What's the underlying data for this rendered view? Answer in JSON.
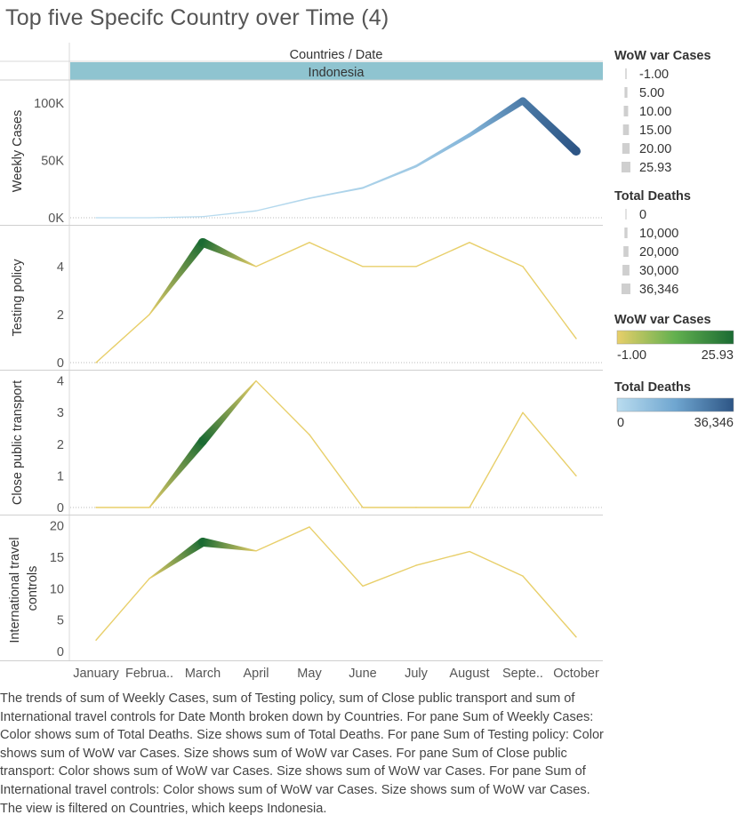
{
  "title": "Top five Specifc Country over Time (4)",
  "header": {
    "columns_label": "Countries / Date",
    "country": "Indonesia"
  },
  "x_labels": [
    "January",
    "Februa..",
    "March",
    "April",
    "May",
    "June",
    "July",
    "August",
    "Septe..",
    "October"
  ],
  "chart_data": [
    {
      "type": "line",
      "ylabel": "Weekly Cases",
      "yticks": [
        "0K",
        "50K",
        "100K"
      ],
      "ylim": [
        0,
        110000
      ],
      "x": [
        "January",
        "February",
        "March",
        "April",
        "May",
        "June",
        "July",
        "August",
        "September",
        "October"
      ],
      "values": [
        0,
        0,
        1000,
        6000,
        17000,
        26000,
        45000,
        72000,
        102000,
        58000
      ],
      "color_by": "Total Deaths",
      "size_by": "Total Deaths",
      "color_values": [
        0,
        0,
        200,
        800,
        2000,
        3500,
        6500,
        13000,
        28000,
        36346
      ]
    },
    {
      "type": "line",
      "ylabel": "Testing policy",
      "yticks": [
        "0",
        "2",
        "4"
      ],
      "ylim": [
        0,
        5.4
      ],
      "x": [
        "January",
        "February",
        "March",
        "April",
        "May",
        "June",
        "July",
        "August",
        "September",
        "October"
      ],
      "values": [
        0,
        2,
        5,
        4,
        5,
        4,
        4,
        5,
        4,
        1
      ],
      "color_by": "WoW var Cases",
      "size_by": "WoW var Cases",
      "color_values": [
        -1,
        -1,
        25.93,
        -1,
        -1,
        -1,
        -1,
        -1,
        -1,
        -1
      ]
    },
    {
      "type": "line",
      "ylabel": "Close public transport",
      "yticks": [
        "0",
        "1",
        "2",
        "3",
        "4"
      ],
      "ylim": [
        0,
        4.1
      ],
      "x": [
        "January",
        "February",
        "March",
        "April",
        "May",
        "June",
        "July",
        "August",
        "September",
        "October"
      ],
      "values": [
        0,
        0,
        2.1,
        4,
        2.3,
        0,
        0,
        0,
        3,
        1
      ],
      "color_by": "WoW var Cases",
      "size_by": "WoW var Cases",
      "color_values": [
        -1,
        -1,
        25.93,
        -1,
        -1,
        -1,
        -1,
        -1,
        -1,
        -1
      ]
    },
    {
      "type": "line",
      "ylabel": "International travel controls",
      "yticks": [
        "0",
        "5",
        "10",
        "15",
        "20"
      ],
      "ylim": [
        0,
        20.5
      ],
      "x": [
        "January",
        "February",
        "March",
        "April",
        "May",
        "June",
        "July",
        "August",
        "September",
        "October"
      ],
      "values": [
        1.8,
        11.6,
        17.4,
        16,
        19.8,
        10.4,
        13.7,
        15.9,
        12,
        2.3
      ],
      "color_by": "WoW var Cases",
      "size_by": "WoW var Cases",
      "color_values": [
        -1,
        -1,
        25.93,
        -1,
        -1,
        -1,
        -1,
        -1,
        -1,
        -1
      ]
    }
  ],
  "legends": {
    "wow_size": {
      "title": "WoW var Cases",
      "items": [
        "-1.00",
        "5.00",
        "10.00",
        "15.00",
        "20.00",
        "25.93"
      ]
    },
    "deaths_size": {
      "title": "Total Deaths",
      "items": [
        "0",
        "10,000",
        "20,000",
        "30,000",
        "36,346"
      ]
    },
    "wow_color": {
      "title": "WoW var Cases",
      "min": "-1.00",
      "max": "25.93",
      "colors": [
        "#e8cf6a",
        "#62b04f",
        "#1b6b33"
      ]
    },
    "deaths_color": {
      "title": "Total Deaths",
      "min": "0",
      "max": "36,346",
      "colors": [
        "#b9dcef",
        "#6fa6d0",
        "#2d5585"
      ]
    }
  },
  "caption": "The trends of sum of Weekly Cases, sum of Testing policy, sum of Close public transport and sum of International travel controls for Date Month broken down by Countries.  For pane Sum of Weekly Cases:  Color shows sum of Total Deaths.  Size shows sum of Total Deaths.  For pane Sum of Testing policy:  Color shows sum of WoW var Cases.  Size shows sum of WoW var Cases.  For pane Sum of Close public transport:  Color shows sum of WoW var Cases.  Size shows sum of WoW var Cases.  For pane Sum of International travel controls:  Color shows sum of WoW var Cases.  Size shows sum of WoW var Cases. The view is filtered on Countries, which keeps Indonesia."
}
